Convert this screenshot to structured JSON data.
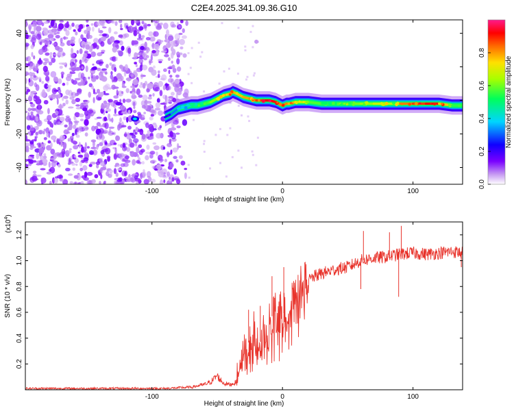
{
  "title": "C2E4.2025.341.09.36.G10",
  "chart_data": [
    {
      "type": "heatmap",
      "name": "spectrogram",
      "xlabel": "Height of straight line (km)",
      "ylabel": "Frequency (Hz)",
      "xlim": [
        -197,
        138
      ],
      "ylim": [
        -50,
        48
      ],
      "xticks": [
        -100,
        0,
        100
      ],
      "xtick_labels": [
        "-100",
        "0",
        "100"
      ],
      "yticks": [
        -40,
        -20,
        0,
        20,
        40
      ],
      "ytick_labels": [
        "-40",
        "-20",
        "0",
        "20",
        "40"
      ],
      "noise_region_x": [
        -197,
        -73
      ],
      "signal_trace": {
        "x": [
          -90,
          -85,
          -80,
          -75,
          -70,
          -65,
          -60,
          -55,
          -50,
          -45,
          -40,
          -38,
          -35,
          -30,
          -25,
          -20,
          -15,
          -10,
          -5,
          0,
          3,
          5,
          10,
          20,
          30,
          40,
          50,
          60,
          70,
          80,
          85,
          90,
          100,
          110,
          120,
          130,
          138
        ],
        "y": [
          -10,
          -8,
          -5,
          -4,
          -3,
          -3,
          -2,
          -1,
          1,
          3,
          4,
          5,
          4,
          2,
          1,
          0,
          0,
          0,
          -1,
          -3,
          -2,
          -2,
          -1,
          -1,
          -2,
          -2,
          -2,
          -2,
          -2,
          -2,
          -2,
          -2,
          -2,
          -2,
          -2,
          -3,
          -3
        ],
        "amplitude": [
          0.2,
          0.3,
          0.35,
          0.4,
          0.45,
          0.5,
          0.55,
          0.6,
          0.65,
          0.75,
          0.8,
          0.8,
          0.75,
          0.78,
          0.8,
          0.85,
          0.9,
          0.95,
          0.9,
          0.85,
          0.8,
          0.8,
          0.75,
          0.6,
          0.55,
          0.55,
          0.6,
          0.6,
          0.65,
          0.7,
          0.6,
          0.8,
          0.85,
          0.9,
          0.92,
          0.6,
          0.5
        ]
      },
      "isolated_blobs": [
        {
          "x": -113,
          "y": -11
        },
        {
          "x": -20,
          "y": 35
        }
      ],
      "colorbar": {
        "label": "Normalized spectral amplitude",
        "range": [
          0,
          1
        ],
        "ticks": [
          0.0,
          0.2,
          0.4,
          0.6,
          0.8
        ],
        "tick_labels": [
          "0.0",
          "0.2",
          "0.4",
          "0.6",
          "0.8"
        ]
      }
    },
    {
      "type": "line",
      "name": "snr",
      "xlabel": "Height of straight line (km)",
      "ylabel": "SNR (10 * v/v)",
      "y_multiplier_label": "(x10",
      "y_multiplier_exp": "4",
      "xlim": [
        -197,
        138
      ],
      "ylim": [
        0,
        1.3
      ],
      "xticks": [
        -100,
        0,
        100
      ],
      "xtick_labels": [
        "-100",
        "0",
        "100"
      ],
      "yticks": [
        0.2,
        0.4,
        0.6,
        0.8,
        1.0,
        1.2
      ],
      "ytick_labels": [
        "0.2",
        "0.4",
        "0.6",
        "0.8",
        "1.0",
        "1.2"
      ],
      "color": "#e8332b",
      "series": [
        {
          "name": "SNR",
          "x": [
            -197,
            -180,
            -160,
            -140,
            -120,
            -100,
            -90,
            -80,
            -70,
            -65,
            -60,
            -55,
            -52,
            -50,
            -48,
            -45,
            -40,
            -35,
            -32,
            -30,
            -28,
            -25,
            -22,
            -20,
            -15,
            -10,
            -5,
            0,
            5,
            10,
            15,
            20,
            25,
            30,
            40,
            50,
            60,
            70,
            80,
            90,
            100,
            110,
            120,
            130,
            138
          ],
          "y": [
            0.01,
            0.01,
            0.01,
            0.01,
            0.01,
            0.01,
            0.01,
            0.015,
            0.02,
            0.03,
            0.04,
            0.06,
            0.09,
            0.11,
            0.08,
            0.05,
            0.04,
            0.06,
            0.2,
            0.3,
            0.4,
            0.35,
            0.45,
            0.3,
            0.42,
            0.55,
            0.6,
            0.58,
            0.65,
            0.7,
            0.8,
            0.85,
            0.88,
            0.9,
            0.93,
            0.95,
            1.0,
            1.02,
            1.03,
            1.05,
            1.06,
            1.05,
            1.06,
            1.07,
            1.06
          ],
          "spikes": [
            {
              "x": -26,
              "y": 0.62
            },
            {
              "x": -17,
              "y": 0.65
            },
            {
              "x": -8,
              "y": 0.88
            },
            {
              "x": 1,
              "y": 0.95
            },
            {
              "x": 13,
              "y": 0.77
            },
            {
              "x": 62,
              "y": 1.23
            },
            {
              "x": 82,
              "y": 1.22
            },
            {
              "x": 91,
              "y": 1.27
            },
            {
              "x": 60,
              "y": 0.78
            },
            {
              "x": 89,
              "y": 0.72
            },
            {
              "x": 137,
              "y": 0.95
            }
          ]
        }
      ]
    }
  ]
}
